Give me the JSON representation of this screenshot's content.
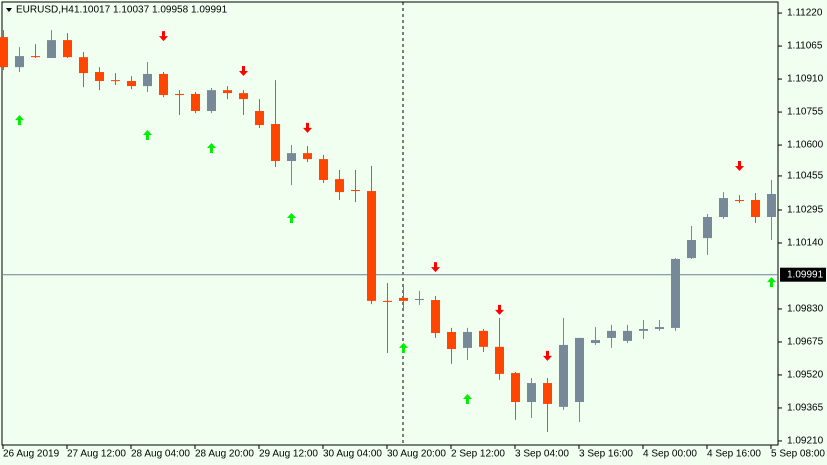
{
  "chart_data": {
    "type": "candlestick",
    "title": "EURUSD,H4",
    "header_values": [
      1.10017,
      1.10037,
      1.09958,
      1.09991
    ],
    "categories": [
      "26 Aug 2019",
      null,
      null,
      null,
      "27 Aug 12:00",
      null,
      null,
      null,
      "28 Aug 04:00",
      null,
      null,
      null,
      "28 Aug 20:00",
      null,
      null,
      null,
      "29 Aug 12:00",
      null,
      null,
      null,
      "30 Aug 04:00",
      null,
      null,
      null,
      "30 Aug 20:00",
      null,
      null,
      null,
      "2 Sep 12:00",
      null,
      null,
      null,
      "3 Sep 04:00",
      null,
      null,
      null,
      "3 Sep 16:00",
      null,
      null,
      null,
      "4 Sep 00:00",
      null,
      null,
      null,
      "4 Sep 16:00",
      null,
      null,
      null,
      "5 Sep 08:00"
    ],
    "open": [
      1.11107,
      1.10966,
      1.11018,
      1.11009,
      1.11093,
      1.11013,
      1.10943,
      1.10905,
      1.10901,
      1.10877,
      1.10934,
      1.1084,
      1.1084,
      1.1076,
      1.10858,
      1.10844,
      1.1076,
      1.10699,
      1.10525,
      1.10562,
      1.10534,
      1.1044,
      1.10389,
      1.10384,
      1.09868,
      1.09882,
      1.09872,
      1.09872,
      1.09722,
      1.09647,
      1.09727,
      1.09652,
      1.09529,
      1.09393,
      1.09482,
      1.0937,
      1.09393,
      1.0967,
      1.09694,
      1.0968,
      1.09727,
      1.09736,
      1.09741,
      1.10069,
      1.10163,
      1.10262,
      1.10342,
      1.10342,
      1.10262
    ],
    "high": [
      1.1114,
      1.1106,
      1.11074,
      1.1114,
      1.11126,
      1.11037,
      1.10966,
      1.10938,
      1.10924,
      1.1099,
      1.10943,
      1.10858,
      1.10849,
      1.10868,
      1.10877,
      1.10858,
      1.10816,
      1.10905,
      1.106,
      1.10595,
      1.10553,
      1.10483,
      1.10483,
      1.10502,
      1.09952,
      1.09943,
      1.09915,
      1.09891,
      1.09741,
      1.09741,
      1.09736,
      1.09788,
      1.09534,
      1.09506,
      1.09506,
      1.09788,
      1.09694,
      1.09745,
      1.09755,
      1.09755,
      1.09778,
      1.09778,
      1.10069,
      1.1022,
      1.10276,
      1.10379,
      1.10365,
      1.10375,
      1.10436
    ],
    "low": [
      1.10952,
      1.10943,
      1.11009,
      1.11009,
      1.11009,
      1.10872,
      1.10858,
      1.10882,
      1.10863,
      1.10849,
      1.10825,
      1.10741,
      1.1075,
      1.1075,
      1.10816,
      1.10741,
      1.1068,
      1.10497,
      1.10412,
      1.1052,
      1.10422,
      1.10342,
      1.10332,
      1.09853,
      1.09623,
      1.09825,
      1.09849,
      1.09694,
      1.09572,
      1.0959,
      1.09628,
      1.09497,
      1.09309,
      1.09318,
      1.09252,
      1.09356,
      1.09299,
      1.09661,
      1.09647,
      1.0967,
      1.09689,
      1.09727,
      1.09727,
      1.10065,
      1.10084,
      1.10253,
      1.10328,
      1.10234,
      1.10154
    ],
    "close": [
      1.10966,
      1.11018,
      1.11013,
      1.11093,
      1.11013,
      1.10938,
      1.10901,
      1.10901,
      1.10877,
      1.10934,
      1.10835,
      1.10835,
      1.1076,
      1.10858,
      1.10844,
      1.10816,
      1.10694,
      1.10525,
      1.10562,
      1.10534,
      1.10436,
      1.10379,
      1.10384,
      1.09868,
      1.09863,
      1.09868,
      1.09877,
      1.09717,
      1.09642,
      1.09722,
      1.09652,
      1.09525,
      1.09393,
      1.09482,
      1.09384,
      1.09661,
      1.09694,
      1.09684,
      1.09727,
      1.09727,
      1.09736,
      1.09745,
      1.10065,
      1.10154,
      1.10262,
      1.10351,
      1.10337,
      1.10262,
      1.1037
    ],
    "up_color": "#778899",
    "down_color": "#ff4500",
    "ylim": [
      1.09191,
      1.11272
    ],
    "yticks": [
      {
        "value": 1.1122,
        "label": "1.11220"
      },
      1.11065,
      {
        "value": 1.1091,
        "label": "1.10910"
      },
      1.10755,
      {
        "value": 1.106,
        "label": "1.10600"
      },
      1.10455,
      1.10295,
      {
        "value": 1.1014,
        "label": "1.10140"
      },
      {
        "value": 1.0983,
        "label": "1.09830"
      },
      1.09675,
      {
        "value": 1.0952,
        "label": "1.09520"
      },
      1.09365,
      {
        "value": 1.0921,
        "label": "1.09210"
      }
    ],
    "current_price": 1.09991,
    "down_arrows": {
      "color": "#ff0000",
      "x": [
        10,
        15,
        19,
        27,
        31,
        34,
        46
      ],
      "values": [
        1.11107,
        1.10943,
        1.10676,
        1.10022,
        1.09821,
        1.09605,
        1.10497
      ]
    },
    "up_arrows": {
      "color": "#00ee00",
      "x": [
        1,
        9,
        13,
        18,
        25,
        29,
        48
      ],
      "values": [
        1.10722,
        1.10652,
        1.10591,
        1.10262,
        1.09652,
        1.09412,
        1.09961
      ]
    }
  }
}
